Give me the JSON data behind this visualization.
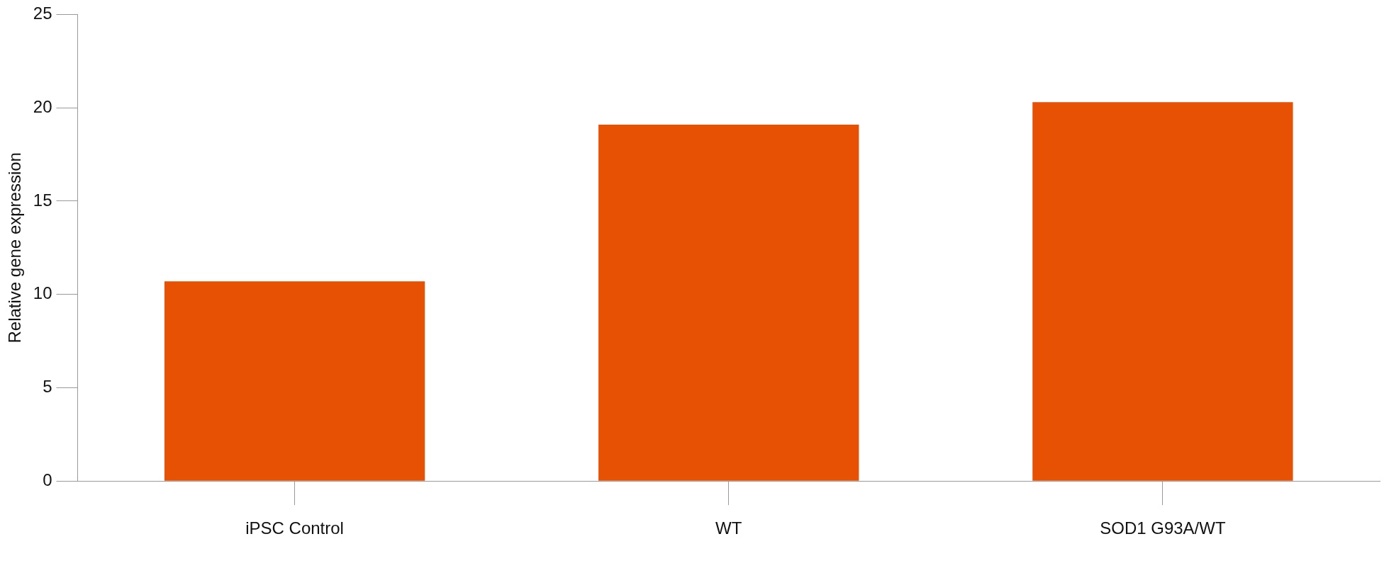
{
  "chart_data": {
    "type": "bar",
    "ylabel": "Relative gene expression",
    "categories": [
      "iPSC Control",
      "WT",
      "SOD1 G93A/WT"
    ],
    "values": [
      10.7,
      19.1,
      20.3
    ],
    "color": "#e65104",
    "ylim": [
      0,
      25
    ],
    "yticks": [
      0,
      5,
      10,
      15,
      20,
      25
    ],
    "grid": false,
    "legend": false
  }
}
